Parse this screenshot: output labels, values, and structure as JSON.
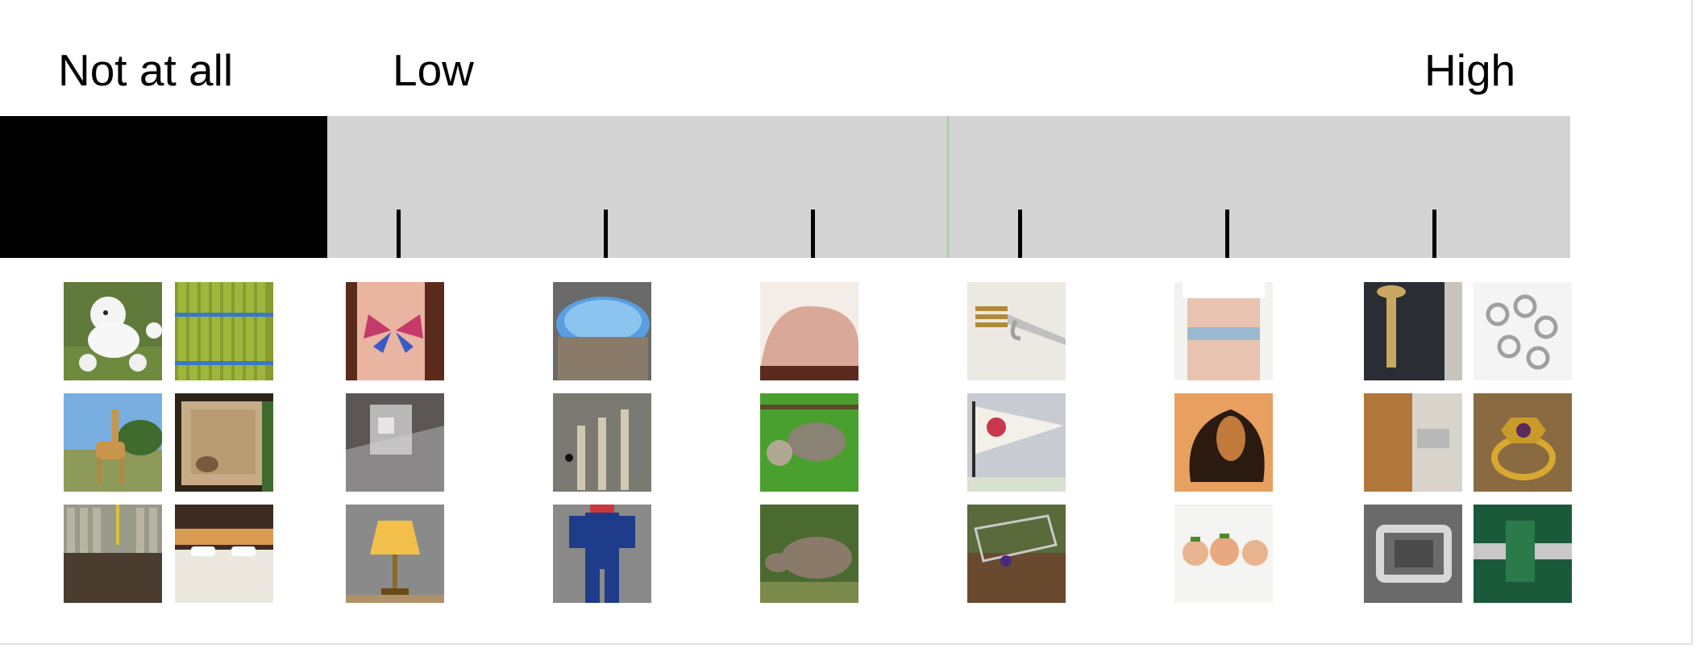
{
  "scale": {
    "labels": {
      "not_at_all": "Not at all",
      "low": "Low",
      "high": "High"
    },
    "tick_count": 6,
    "selected_fraction": 0.603,
    "colors": {
      "bar": "#d3d3d3",
      "not_at_all_region": "#000000",
      "tick": "#000000",
      "cursor": "#9fd49f"
    }
  },
  "anchor_images": {
    "not_at_all": [
      "poodle",
      "asparagus",
      "giraffe",
      "mosquito-net",
      "compost-pile",
      "hotel-bed"
    ],
    "level_1": [
      "butterfly-tattoo",
      "glass-block",
      "table-lamp"
    ],
    "level_2": [
      "hot-tub",
      "mops",
      "coveralls"
    ],
    "level_3": [
      "knee",
      "sloth",
      "rhinoceros"
    ],
    "level_4": [
      "hook-tool",
      "pennant",
      "shopping-cart"
    ],
    "level_5": [
      "garter",
      "leather-shoe",
      "scallops"
    ],
    "high": [
      "screw",
      "swivel-clasps",
      "door-latch",
      "gold-ring",
      "belt-buckle",
      "threaded-rod"
    ]
  }
}
